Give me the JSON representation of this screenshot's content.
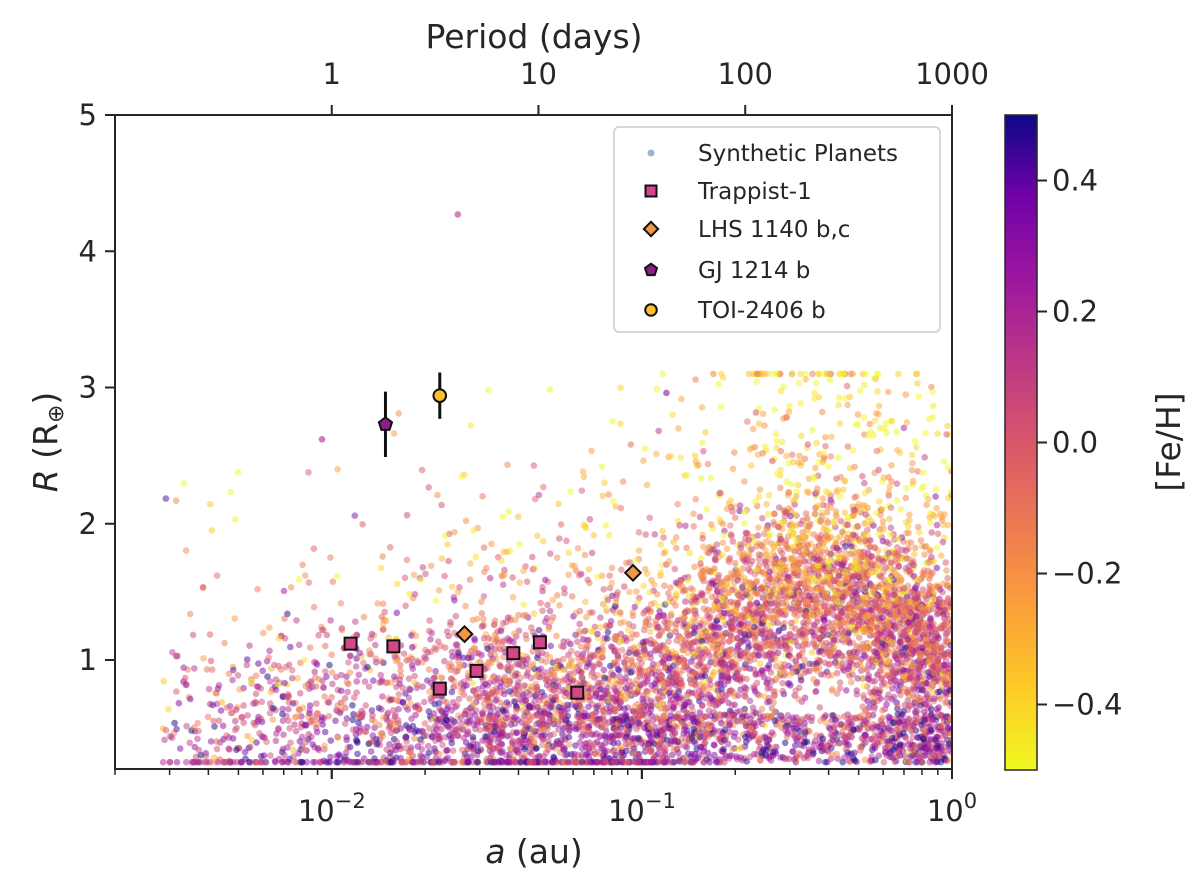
{
  "chart_data": {
    "type": "scatter",
    "title": "",
    "xlabel": "a (au)",
    "xlabel_italic": "a",
    "xlabel_unit": "(au)",
    "ylabel": "R (R⊕)",
    "ylabel_italic": "R",
    "ylabel_unit": "(R",
    "ylabel_sub": "⊕",
    "ylabel_close": ")",
    "top_xlabel": "Period (days)",
    "xscale": "log",
    "xlim": [
      0.002,
      1.0
    ],
    "ylim": [
      0.2,
      5.0
    ],
    "xticks": [
      {
        "value": 0.01,
        "base": "10",
        "exp": "−2"
      },
      {
        "value": 0.1,
        "base": "10",
        "exp": "−1"
      },
      {
        "value": 1.0,
        "base": "10",
        "exp": "0"
      }
    ],
    "yticks": [
      {
        "value": 1,
        "label": "1"
      },
      {
        "value": 2,
        "label": "2"
      },
      {
        "value": 3,
        "label": "3"
      },
      {
        "value": 4,
        "label": "4"
      },
      {
        "value": 5,
        "label": "5"
      }
    ],
    "top_ticks": [
      {
        "a": 0.01,
        "label": "1"
      },
      {
        "a": 0.0464,
        "label": "10"
      },
      {
        "a": 0.2154,
        "label": "100"
      },
      {
        "a": 1.0,
        "label": "1000"
      }
    ],
    "colorbar": {
      "label": "[Fe/H]",
      "range": [
        -0.5,
        0.5
      ],
      "colormap": "plasma",
      "ticks": [
        {
          "value": 0.4,
          "label": "0.4"
        },
        {
          "value": 0.2,
          "label": "0.2"
        },
        {
          "value": 0.0,
          "label": "0.0"
        },
        {
          "value": -0.2,
          "label": "−0.2"
        },
        {
          "value": -0.4,
          "label": "−0.4"
        }
      ]
    },
    "synthetic_planets": {
      "name": "Synthetic Planets",
      "color": "#9fb1d6",
      "count": 7000,
      "a_range": [
        0.0028,
        1.0
      ],
      "r_range": [
        0.25,
        4.27
      ]
    },
    "observed": [
      {
        "name": "Trappist-1",
        "marker": "square",
        "color": "#d3468a",
        "points": [
          {
            "a": 0.0115,
            "r": 1.12
          },
          {
            "a": 0.0158,
            "r": 1.1
          },
          {
            "a": 0.0223,
            "r": 0.79
          },
          {
            "a": 0.0293,
            "r": 0.92
          },
          {
            "a": 0.0385,
            "r": 1.05
          },
          {
            "a": 0.0469,
            "r": 1.13
          },
          {
            "a": 0.0619,
            "r": 0.76
          }
        ]
      },
      {
        "name": "LHS 1140 b,c",
        "marker": "diamond",
        "color": "#f29746",
        "points": [
          {
            "a": 0.0268,
            "r": 1.19
          },
          {
            "a": 0.0936,
            "r": 1.64
          }
        ]
      },
      {
        "name": "GJ 1214 b",
        "marker": "pentagon",
        "color": "#8e1c8f",
        "points": [
          {
            "a": 0.0149,
            "r": 2.73,
            "rerr": 0.24
          }
        ]
      },
      {
        "name": "TOI-2406 b",
        "marker": "circle",
        "color": "#fdbf2b",
        "points": [
          {
            "a": 0.0223,
            "r": 2.94,
            "rerr": 0.17
          }
        ]
      }
    ]
  }
}
